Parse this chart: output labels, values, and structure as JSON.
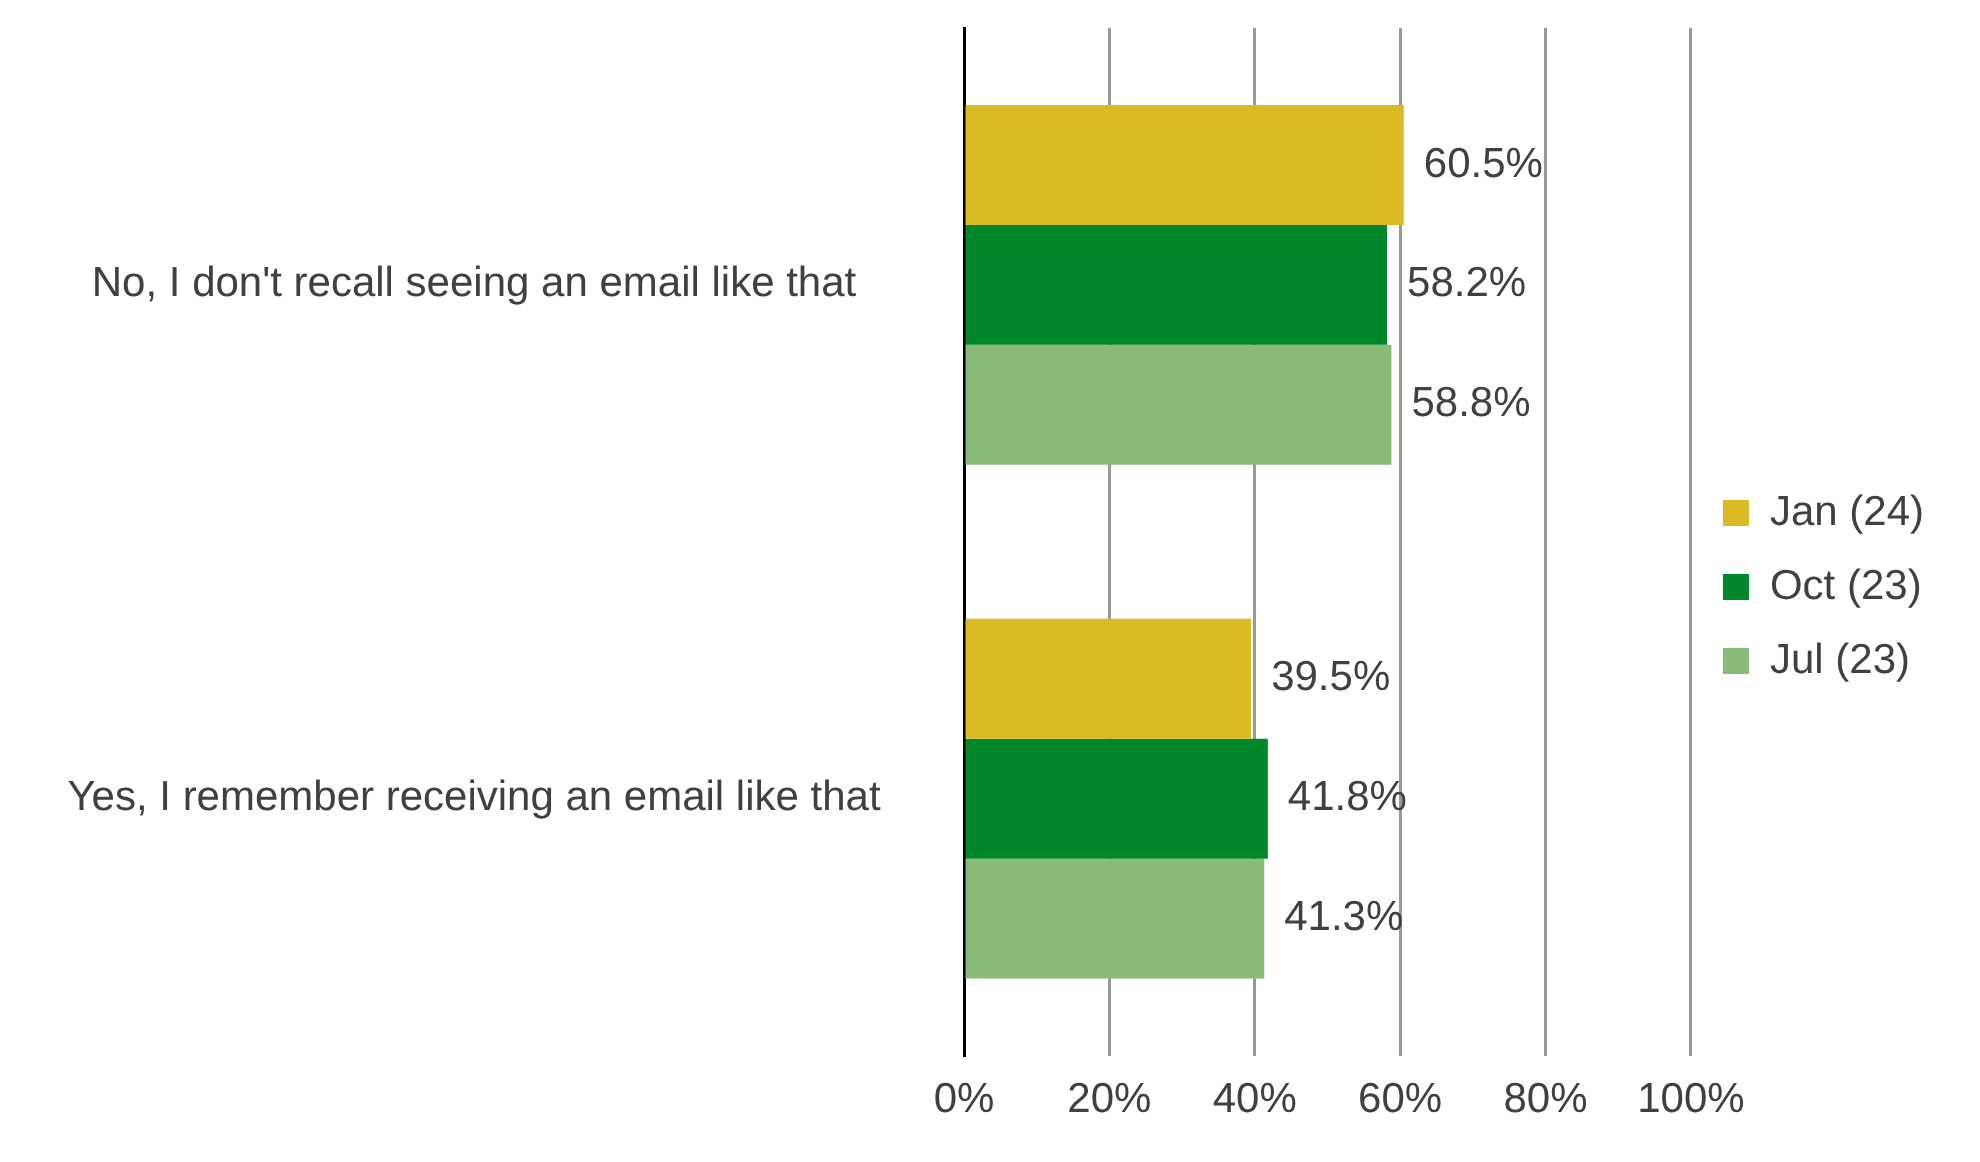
{
  "chart_data": {
    "type": "bar",
    "orientation": "horizontal",
    "categories": [
      "No, I don't recall seeing an email like that",
      "Yes, I remember receiving an email like that"
    ],
    "series": [
      {
        "name": "Jan (24)",
        "color": "#dbbb24",
        "values": [
          60.5,
          39.5
        ],
        "value_labels": [
          "60.5%",
          "39.5%"
        ]
      },
      {
        "name": "Oct (23)",
        "color": "#00882b",
        "values": [
          58.2,
          41.8
        ],
        "value_labels": [
          "58.2%",
          "41.8%"
        ]
      },
      {
        "name": "Jul (23)",
        "color": "#88bb77",
        "values": [
          58.8,
          41.3
        ],
        "value_labels": [
          "58.8%",
          "41.3%"
        ]
      }
    ],
    "xlim": [
      0,
      100
    ],
    "xticks": [
      {
        "value": 0,
        "label": "0%"
      },
      {
        "value": 20,
        "label": "20%"
      },
      {
        "value": 40,
        "label": "40%"
      },
      {
        "value": 60,
        "label": "60%"
      },
      {
        "value": 80,
        "label": "80%"
      },
      {
        "value": 100,
        "label": "100%"
      }
    ],
    "grid": "x",
    "legend": "right"
  }
}
